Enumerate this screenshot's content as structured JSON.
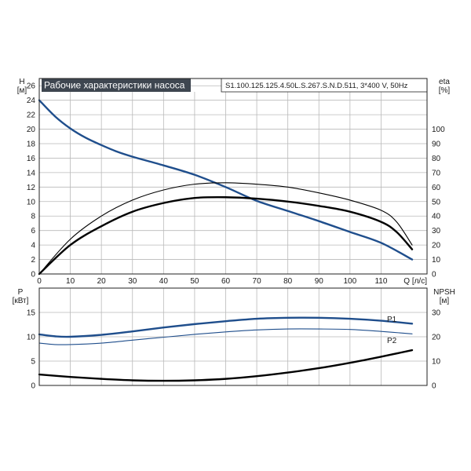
{
  "header": {
    "title": "Рабочие характеристики насоса",
    "model": "S1.100.125.125.4.50L.S.267.S.N.D.511, 3*400 V, 50Hz"
  },
  "chart_data": [
    {
      "type": "line",
      "xlabel": "Q [л/с]",
      "ylabel": "H\n[м]",
      "y2label": "eta\n[%]",
      "xlim": [
        0,
        120
      ],
      "ylim": [
        0,
        27
      ],
      "y2lim": [
        0,
        135
      ],
      "x_ticks": [
        0,
        10,
        20,
        30,
        40,
        50,
        60,
        70,
        80,
        90,
        100,
        110
      ],
      "y_ticks": [
        0,
        2,
        4,
        6,
        8,
        10,
        12,
        14,
        16,
        18,
        20,
        22,
        24,
        26
      ],
      "y2_ticks": [
        0,
        10,
        20,
        30,
        40,
        50,
        60,
        70,
        80,
        90,
        100
      ],
      "grid": true,
      "series": [
        {
          "color": "#1f4e8c",
          "axis": "left",
          "x": [
            0,
            5,
            10,
            15,
            20,
            25,
            30,
            40,
            50,
            60,
            70,
            80,
            90,
            100,
            110,
            120
          ],
          "y": [
            24,
            21.8,
            20.1,
            18.8,
            17.8,
            16.9,
            16.2,
            15,
            13.7,
            12,
            10.1,
            8.7,
            7.3,
            5.8,
            4.3,
            2
          ]
        },
        {
          "color": "#000000",
          "axis": "right",
          "thin": true,
          "x": [
            0,
            10,
            20,
            30,
            40,
            50,
            60,
            70,
            80,
            90,
            100,
            110,
            115,
            120
          ],
          "y": [
            0,
            24,
            40,
            51,
            58,
            62,
            63,
            62,
            60,
            56,
            51,
            44,
            36,
            20
          ]
        },
        {
          "color": "#000000",
          "axis": "right",
          "x": [
            0,
            10,
            20,
            30,
            40,
            50,
            60,
            70,
            80,
            90,
            100,
            110,
            115,
            120
          ],
          "y": [
            0,
            20,
            33,
            43,
            49,
            52.5,
            53,
            52,
            50,
            47,
            43,
            36,
            29,
            17
          ]
        }
      ]
    },
    {
      "type": "line",
      "ylabel": "P\n[кВт]",
      "y2label": "NPSH\n[м]",
      "xlim": [
        0,
        120
      ],
      "ylim": [
        0,
        20
      ],
      "y2lim": [
        0,
        40
      ],
      "y_ticks": [
        0,
        5,
        10,
        15
      ],
      "y2_ticks": [
        0,
        10,
        20,
        30
      ],
      "grid": true,
      "series": [
        {
          "name": "P1",
          "color": "#1f4e8c",
          "axis": "left",
          "x": [
            0,
            5,
            10,
            20,
            30,
            40,
            50,
            60,
            70,
            80,
            90,
            100,
            110,
            120
          ],
          "y": [
            10.5,
            10.1,
            10,
            10.4,
            11.1,
            11.9,
            12.6,
            13.2,
            13.7,
            13.9,
            13.9,
            13.7,
            13.3,
            12.7
          ]
        },
        {
          "name": "P2",
          "color": "#1f4e8c",
          "axis": "left",
          "thin": true,
          "x": [
            0,
            5,
            10,
            20,
            30,
            40,
            50,
            60,
            70,
            80,
            90,
            100,
            110,
            120
          ],
          "y": [
            8.7,
            8.4,
            8.4,
            8.7,
            9.3,
            9.9,
            10.5,
            11,
            11.4,
            11.6,
            11.6,
            11.5,
            11.1,
            10.6
          ]
        },
        {
          "color": "#000000",
          "axis": "right",
          "x": [
            0,
            10,
            20,
            30,
            40,
            50,
            60,
            70,
            80,
            90,
            100,
            110,
            120
          ],
          "y": [
            4.5,
            3.5,
            2.7,
            2.1,
            1.9,
            2.1,
            2.7,
            3.8,
            5.3,
            7.1,
            9.3,
            11.8,
            14.5
          ]
        }
      ]
    }
  ]
}
